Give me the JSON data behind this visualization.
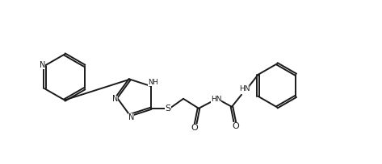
{
  "bg_color": "#ffffff",
  "line_color": "#1a1a1a",
  "line_width": 1.4,
  "font_size": 7.0,
  "fig_width": 4.73,
  "fig_height": 2.04,
  "dpi": 100,
  "xlim": [
    0,
    4.73
  ],
  "ylim": [
    0,
    2.04
  ]
}
